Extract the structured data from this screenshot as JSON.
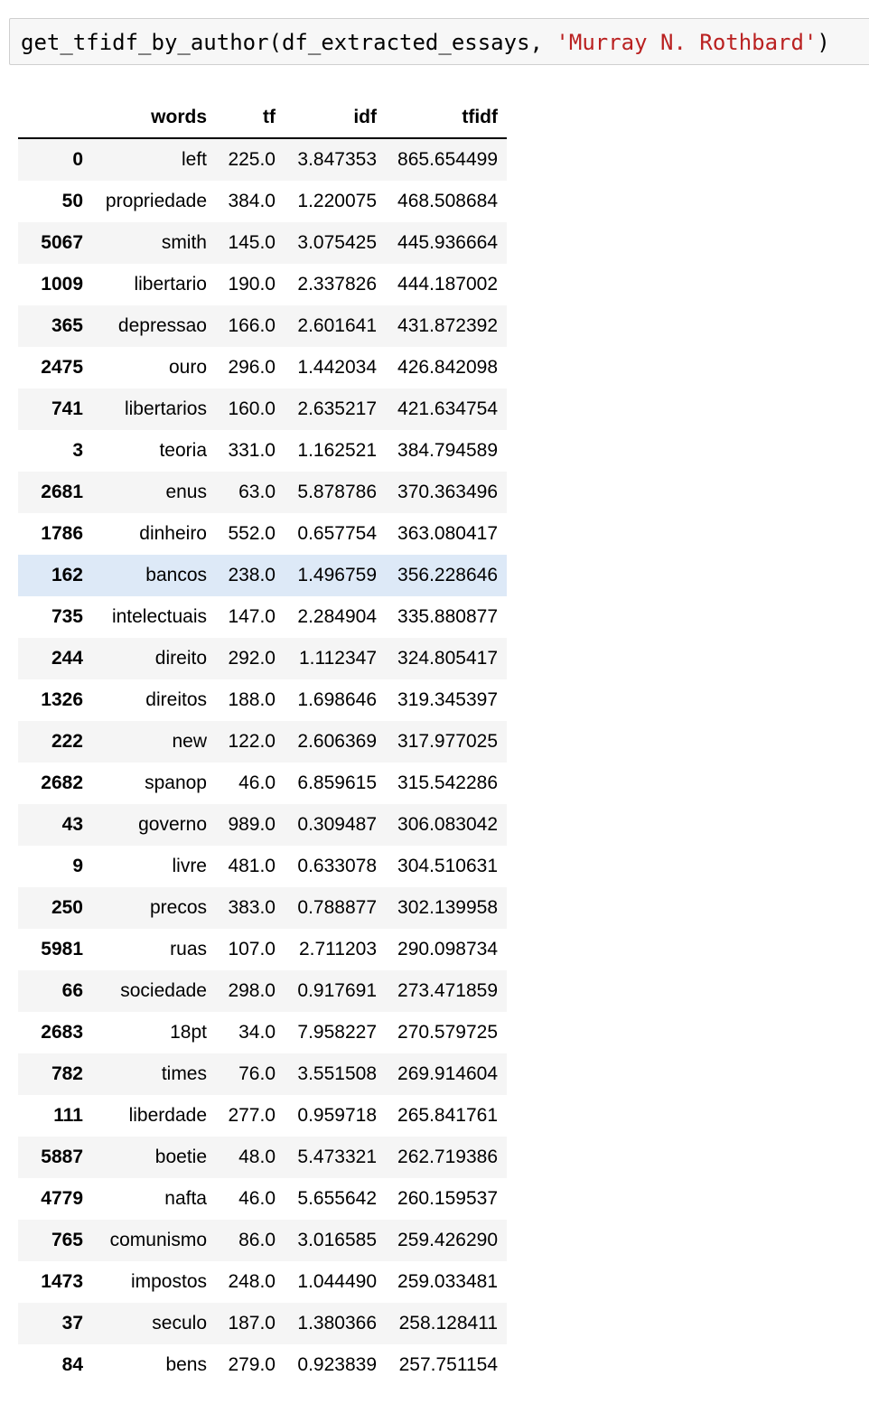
{
  "code_cell": {
    "function_call": "get_tfidf_by_author(df_extracted_essays, ",
    "string_arg": "'Murray N. Rothbard'",
    "close": ")"
  },
  "table": {
    "columns": [
      "",
      "words",
      "tf",
      "idf",
      "tfidf"
    ],
    "highlighted_row_index": 10,
    "rows": [
      {
        "index": "0",
        "words": "left",
        "tf": "225.0",
        "idf": "3.847353",
        "tfidf": "865.654499"
      },
      {
        "index": "50",
        "words": "propriedade",
        "tf": "384.0",
        "idf": "1.220075",
        "tfidf": "468.508684"
      },
      {
        "index": "5067",
        "words": "smith",
        "tf": "145.0",
        "idf": "3.075425",
        "tfidf": "445.936664"
      },
      {
        "index": "1009",
        "words": "libertario",
        "tf": "190.0",
        "idf": "2.337826",
        "tfidf": "444.187002"
      },
      {
        "index": "365",
        "words": "depressao",
        "tf": "166.0",
        "idf": "2.601641",
        "tfidf": "431.872392"
      },
      {
        "index": "2475",
        "words": "ouro",
        "tf": "296.0",
        "idf": "1.442034",
        "tfidf": "426.842098"
      },
      {
        "index": "741",
        "words": "libertarios",
        "tf": "160.0",
        "idf": "2.635217",
        "tfidf": "421.634754"
      },
      {
        "index": "3",
        "words": "teoria",
        "tf": "331.0",
        "idf": "1.162521",
        "tfidf": "384.794589"
      },
      {
        "index": "2681",
        "words": "enus",
        "tf": "63.0",
        "idf": "5.878786",
        "tfidf": "370.363496"
      },
      {
        "index": "1786",
        "words": "dinheiro",
        "tf": "552.0",
        "idf": "0.657754",
        "tfidf": "363.080417"
      },
      {
        "index": "162",
        "words": "bancos",
        "tf": "238.0",
        "idf": "1.496759",
        "tfidf": "356.228646"
      },
      {
        "index": "735",
        "words": "intelectuais",
        "tf": "147.0",
        "idf": "2.284904",
        "tfidf": "335.880877"
      },
      {
        "index": "244",
        "words": "direito",
        "tf": "292.0",
        "idf": "1.112347",
        "tfidf": "324.805417"
      },
      {
        "index": "1326",
        "words": "direitos",
        "tf": "188.0",
        "idf": "1.698646",
        "tfidf": "319.345397"
      },
      {
        "index": "222",
        "words": "new",
        "tf": "122.0",
        "idf": "2.606369",
        "tfidf": "317.977025"
      },
      {
        "index": "2682",
        "words": "spanop",
        "tf": "46.0",
        "idf": "6.859615",
        "tfidf": "315.542286"
      },
      {
        "index": "43",
        "words": "governo",
        "tf": "989.0",
        "idf": "0.309487",
        "tfidf": "306.083042"
      },
      {
        "index": "9",
        "words": "livre",
        "tf": "481.0",
        "idf": "0.633078",
        "tfidf": "304.510631"
      },
      {
        "index": "250",
        "words": "precos",
        "tf": "383.0",
        "idf": "0.788877",
        "tfidf": "302.139958"
      },
      {
        "index": "5981",
        "words": "ruas",
        "tf": "107.0",
        "idf": "2.711203",
        "tfidf": "290.098734"
      },
      {
        "index": "66",
        "words": "sociedade",
        "tf": "298.0",
        "idf": "0.917691",
        "tfidf": "273.471859"
      },
      {
        "index": "2683",
        "words": "18pt",
        "tf": "34.0",
        "idf": "7.958227",
        "tfidf": "270.579725"
      },
      {
        "index": "782",
        "words": "times",
        "tf": "76.0",
        "idf": "3.551508",
        "tfidf": "269.914604"
      },
      {
        "index": "111",
        "words": "liberdade",
        "tf": "277.0",
        "idf": "0.959718",
        "tfidf": "265.841761"
      },
      {
        "index": "5887",
        "words": "boetie",
        "tf": "48.0",
        "idf": "5.473321",
        "tfidf": "262.719386"
      },
      {
        "index": "4779",
        "words": "nafta",
        "tf": "46.0",
        "idf": "5.655642",
        "tfidf": "260.159537"
      },
      {
        "index": "765",
        "words": "comunismo",
        "tf": "86.0",
        "idf": "3.016585",
        "tfidf": "259.426290"
      },
      {
        "index": "1473",
        "words": "impostos",
        "tf": "248.0",
        "idf": "1.044490",
        "tfidf": "259.033481"
      },
      {
        "index": "37",
        "words": "seculo",
        "tf": "187.0",
        "idf": "1.380366",
        "tfidf": "258.128411"
      },
      {
        "index": "84",
        "words": "bens",
        "tf": "279.0",
        "idf": "0.923839",
        "tfidf": "257.751154"
      }
    ]
  }
}
